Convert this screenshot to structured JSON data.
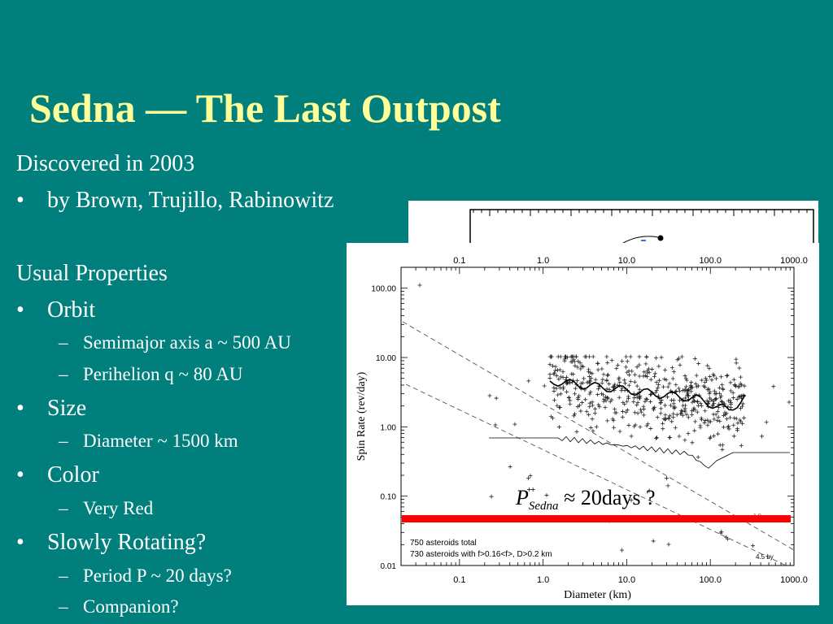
{
  "slide": {
    "title": "Sedna — The Last Outpost",
    "lines": [
      {
        "level": 0,
        "text": "Discovered in 2003"
      },
      {
        "level": 1,
        "text": "by Brown, Trujillo, Rabinowitz"
      },
      {
        "level": 0,
        "text": "Usual Properties"
      },
      {
        "level": 1,
        "text": "Orbit"
      },
      {
        "level": 2,
        "text": "Semimajor axis a ~ 500 AU"
      },
      {
        "level": 2,
        "text": "Perihelion q ~ 80 AU"
      },
      {
        "level": 1,
        "text": "Size"
      },
      {
        "level": 2,
        "text": "Diameter ~ 1500 km"
      },
      {
        "level": 1,
        "text": "Color"
      },
      {
        "level": 2,
        "text": "Very Red"
      },
      {
        "level": 1,
        "text": "Slowly Rotating?"
      },
      {
        "level": 2,
        "text": "Period P ~ 20 days?"
      },
      {
        "level": 2,
        "text": "Companion?"
      }
    ],
    "bullet_char": "•",
    "dash_char": "–",
    "colors": {
      "background": "#007F7D",
      "title": "#FFFF99",
      "text": "#FFFFFF",
      "highlight": "#FF0000"
    }
  },
  "figure": {
    "xlabel": "Diameter (km)",
    "ylabel": "Spin Rate (rev/day)",
    "xticks": [
      "0.1",
      "1.0",
      "10.0",
      "100.0",
      "1000.0"
    ],
    "yticks": [
      "100.00",
      "10.00",
      "1.00",
      "0.10",
      "0.01"
    ],
    "legend_line1": "750 asteroids total",
    "legend_line2": "730 asteroids with f>0.16<f>, D>0.2 km",
    "annotation_45": "4.5 by",
    "annotation_small": "1.0",
    "psedna_p": "P",
    "psedna_sub": "Sedna",
    "psedna_rest": "≈ 20days ?"
  },
  "chart_data": {
    "type": "scatter",
    "xlabel": "Diameter (km)",
    "ylabel": "Spin Rate (rev/day)",
    "xscale": "log",
    "yscale": "log",
    "xlim": [
      0.02,
      1000
    ],
    "ylim": [
      0.01,
      200
    ],
    "xticks": [
      0.1,
      1.0,
      10.0,
      100.0,
      1000.0
    ],
    "yticks": [
      100.0,
      10.0,
      1.0,
      0.1,
      0.01
    ],
    "reference_line": {
      "label": "P_Sedna ≈ 20days ?",
      "y": 0.05
    }
  }
}
